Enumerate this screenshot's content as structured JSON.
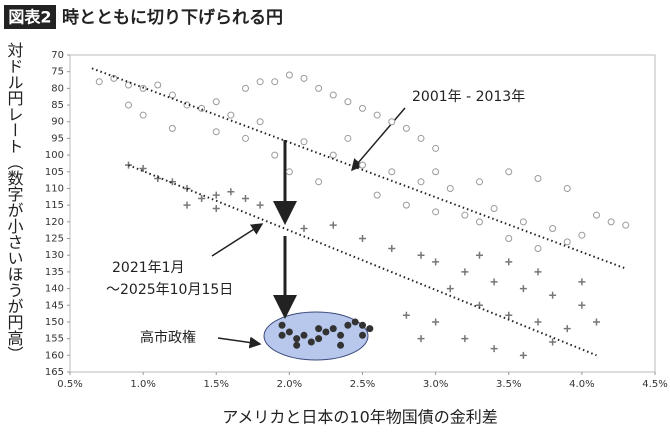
{
  "chart_data": {
    "type": "scatter",
    "title_tag": "図表2",
    "title": "時とともに切り下げられる円",
    "x_label": "アメリカと日本の10年物国債の金利差",
    "y_label": "対ドル円レート（数字が小さいほうが円高）",
    "xlim": [
      0.5,
      4.5
    ],
    "xticks": [
      {
        "value": 0.5,
        "label": "0.5%"
      },
      {
        "value": 1.0,
        "label": "1.0%"
      },
      {
        "value": 1.5,
        "label": "1.5%"
      },
      {
        "value": 2.0,
        "label": "2.0%"
      },
      {
        "value": 2.5,
        "label": "2.5%"
      },
      {
        "value": 3.0,
        "label": "3.0%"
      },
      {
        "value": 3.5,
        "label": "3.5%"
      },
      {
        "value": 4.0,
        "label": "4.0%"
      },
      {
        "value": 4.5,
        "label": "4.5%"
      }
    ],
    "ylim": [
      70,
      165
    ],
    "y_reversed": true,
    "yticks": [
      70,
      75,
      80,
      85,
      90,
      95,
      100,
      105,
      110,
      115,
      120,
      125,
      130,
      135,
      140,
      145,
      150,
      155,
      160,
      165
    ],
    "series": [
      {
        "marker": "circle",
        "color": "#9a9a9a",
        "x": [
          0.7,
          0.8,
          0.9,
          1.0,
          1.1,
          1.2,
          1.3,
          1.4,
          1.5,
          1.6,
          1.7,
          1.8,
          1.9,
          2.0,
          2.1,
          2.2,
          2.3,
          2.4,
          2.5,
          2.6,
          2.7,
          2.8,
          2.9,
          3.0,
          1.5,
          1.7,
          1.9,
          2.1,
          2.3,
          2.5,
          2.7,
          2.9,
          3.1,
          3.3,
          3.5,
          3.7,
          3.9,
          2.6,
          2.8,
          3.0,
          3.2,
          3.4,
          3.6,
          3.8,
          4.0,
          4.2,
          4.3,
          3.5,
          3.7,
          3.9,
          1.2,
          1.0,
          0.9,
          2.0,
          2.2,
          3.3,
          4.1,
          3.0,
          2.4,
          1.8
        ],
        "y": [
          78,
          77,
          79,
          80,
          79,
          82,
          85,
          86,
          84,
          88,
          80,
          78,
          78,
          76,
          77,
          80,
          82,
          84,
          86,
          88,
          90,
          92,
          95,
          98,
          93,
          95,
          100,
          96,
          100,
          103,
          105,
          108,
          110,
          108,
          105,
          107,
          110,
          112,
          115,
          117,
          118,
          116,
          120,
          122,
          124,
          120,
          121,
          125,
          128,
          126,
          92,
          88,
          85,
          105,
          108,
          120,
          118,
          105,
          95,
          90
        ]
      },
      {
        "marker": "plus",
        "color": "#777777",
        "x": [
          0.9,
          1.0,
          1.1,
          1.2,
          1.3,
          1.4,
          1.5,
          1.6,
          1.7,
          1.8,
          1.5,
          1.3,
          2.1,
          2.3,
          2.5,
          2.7,
          2.9,
          3.0,
          3.2,
          3.4,
          3.6,
          3.8,
          4.0,
          4.1,
          3.1,
          3.3,
          3.5,
          3.7,
          3.9,
          3.0,
          3.2,
          3.4,
          3.6,
          2.9,
          2.8,
          3.3,
          3.5,
          3.7,
          4.0,
          3.8
        ],
        "y": [
          103,
          104,
          107,
          108,
          110,
          113,
          112,
          111,
          113,
          115,
          116,
          115,
          122,
          121,
          125,
          128,
          130,
          132,
          135,
          138,
          140,
          142,
          145,
          150,
          140,
          145,
          148,
          150,
          152,
          150,
          155,
          158,
          160,
          155,
          148,
          130,
          132,
          135,
          138,
          156
        ]
      },
      {
        "marker": "dot",
        "color": "#333333",
        "x": [
          1.95,
          2.0,
          2.05,
          2.1,
          2.15,
          2.2,
          2.25,
          2.3,
          2.35,
          2.4,
          2.45,
          2.5,
          2.55,
          2.05,
          2.2,
          2.35,
          2.5,
          1.95
        ],
        "y": [
          154,
          153,
          155,
          154,
          156,
          155,
          153,
          152,
          154,
          151,
          150,
          151,
          152,
          157,
          152,
          157,
          154,
          151
        ]
      }
    ],
    "trendlines": [
      {
        "x": [
          0.65,
          4.3
        ],
        "y": [
          74,
          134
        ]
      },
      {
        "x": [
          0.9,
          4.1
        ],
        "y": [
          103,
          160
        ]
      }
    ],
    "annotations": [
      "2001年 - 2013年",
      "2021年1月",
      "～2025年10月15日",
      "高市政権"
    ]
  }
}
